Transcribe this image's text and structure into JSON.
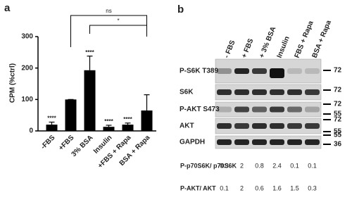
{
  "panels": [
    "a",
    "b"
  ],
  "chart_data": {
    "type": "bar",
    "ylabel": "CPM (%ctrl)",
    "categories": [
      "-FBS",
      "+FBS",
      "3% BSA",
      "Insulin",
      "+FBS + Rapa",
      "BSA + Rapa"
    ],
    "values": [
      20,
      100,
      193,
      13,
      20,
      65
    ],
    "errors": [
      8,
      0,
      45,
      5,
      5,
      50
    ],
    "significance": [
      "****",
      null,
      "****",
      "****",
      "****",
      null
    ],
    "comparisons": [
      {
        "pair": [
          "+FBS",
          "BSA + Rapa"
        ],
        "label": "ns"
      },
      {
        "pair": [
          "3% BSA",
          "BSA + Rapa"
        ],
        "label": "*"
      }
    ],
    "color": "#000000",
    "ylim": [
      0,
      300
    ],
    "yticks": [
      0,
      100,
      200,
      300
    ]
  },
  "blot": {
    "columns": [
      "- FBS",
      "+ FBS",
      "+ 3% BSA",
      "Insulin",
      "FBS + Rapa",
      "BSA + Rapa"
    ],
    "rows": [
      {
        "label": "P-S6K T389",
        "markers": [
          72
        ]
      },
      {
        "label": "S6K",
        "markers": [
          72
        ]
      },
      {
        "label": "P-AKT S473",
        "markers": [
          72,
          55
        ]
      },
      {
        "label": "AKT",
        "markers": [
          72,
          55
        ]
      },
      {
        "label": "GAPDH",
        "markers": [
          55,
          36
        ]
      }
    ],
    "quantification": [
      {
        "label": "P-p70S6K/ p70S6K",
        "values": [
          0.3,
          2,
          0.8,
          2.4,
          0.1,
          0.1
        ]
      },
      {
        "label": "P-AKT/ AKT",
        "values": [
          0.1,
          2,
          0.6,
          1.6,
          1.5,
          0.3
        ]
      }
    ]
  }
}
